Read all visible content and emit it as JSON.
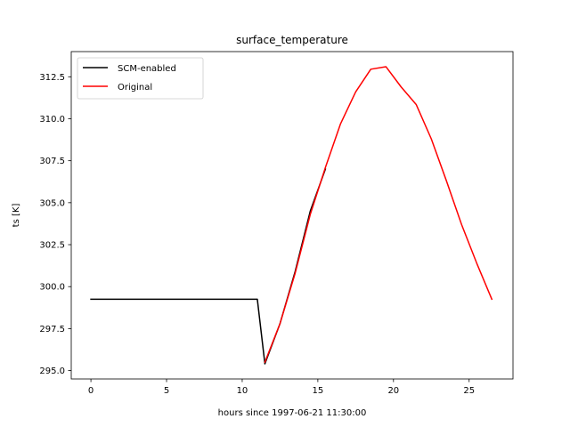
{
  "chart_data": {
    "type": "line",
    "title": "surface_temperature",
    "xlabel": "hours since 1997-06-21 11:30:00",
    "ylabel": "ts [K]",
    "xlim": [
      -1.3,
      27.9
    ],
    "ylim": [
      294.5,
      314.0
    ],
    "xticks": [
      0,
      5,
      10,
      15,
      20,
      25
    ],
    "yticks": [
      295.0,
      297.5,
      300.0,
      302.5,
      305.0,
      307.5,
      310.0,
      312.5
    ],
    "ytick_labels": [
      "295.0",
      "297.5",
      "300.0",
      "302.5",
      "305.0",
      "307.5",
      "310.0",
      "312.5"
    ],
    "xtick_labels": [
      "0",
      "5",
      "10",
      "15",
      "20",
      "25"
    ],
    "grid": false,
    "legend_placement": "top-left",
    "series": [
      {
        "name": "SCM-enabled",
        "color": "#000000",
        "x": [
          0,
          11.0,
          11.5,
          12.5,
          13.5,
          14.5,
          15.5
        ],
        "y": [
          299.25,
          299.25,
          295.4,
          297.8,
          300.9,
          304.5,
          307.0
        ]
      },
      {
        "name": "Original",
        "color": "#ff0000",
        "x": [
          11.5,
          12.5,
          13.5,
          14.5,
          15.5,
          16.5,
          17.5,
          18.5,
          19.5,
          20.5,
          21.5,
          22.5,
          23.5,
          24.5,
          25.5,
          26.5
        ],
        "y": [
          295.5,
          297.8,
          300.8,
          304.3,
          307.1,
          309.7,
          311.6,
          312.95,
          313.1,
          311.9,
          310.85,
          308.8,
          306.3,
          303.7,
          301.4,
          299.25
        ]
      }
    ]
  }
}
